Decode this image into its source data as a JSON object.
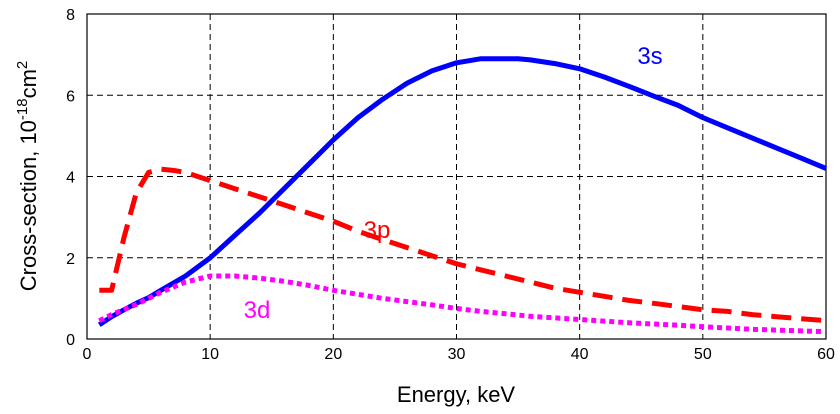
{
  "chart_data": {
    "type": "line",
    "xlabel": "Energy, keV",
    "ylabel": "Cross-section, 10",
    "ylabel_exp": "-18",
    "ylabel_unit": "cm",
    "ylabel_unit_exp": "2",
    "xlim": [
      0,
      60
    ],
    "ylim": [
      0,
      8
    ],
    "xticks": [
      "0",
      "10",
      "20",
      "30",
      "40",
      "50",
      "60"
    ],
    "yticks": [
      "0",
      "2",
      "4",
      "6",
      "8"
    ],
    "grid": true,
    "series": [
      {
        "name": "3s",
        "color": "#0000ff",
        "style": "solid",
        "x": [
          1,
          2,
          3,
          4,
          5,
          6,
          8,
          10,
          12,
          14,
          16,
          18,
          20,
          22,
          24,
          26,
          28,
          30,
          32,
          34,
          35,
          36,
          38,
          40,
          42,
          44,
          46,
          48,
          50,
          52,
          54,
          56,
          58,
          60
        ],
        "y": [
          0.35,
          0.55,
          0.72,
          0.88,
          1.02,
          1.2,
          1.55,
          2.0,
          2.55,
          3.1,
          3.7,
          4.3,
          4.9,
          5.45,
          5.9,
          6.3,
          6.6,
          6.8,
          6.9,
          6.9,
          6.9,
          6.87,
          6.78,
          6.65,
          6.45,
          6.22,
          5.98,
          5.75,
          5.45,
          5.2,
          4.95,
          4.7,
          4.45,
          4.2
        ]
      },
      {
        "name": "3p",
        "color": "#ff0000",
        "style": "dashed",
        "x": [
          1,
          2,
          3,
          4,
          5,
          6,
          7,
          8,
          10,
          12,
          14,
          16,
          18,
          20,
          22,
          24,
          26,
          28,
          30,
          32,
          34,
          36,
          38,
          40,
          42,
          44,
          46,
          48,
          50,
          52,
          54,
          56,
          58,
          60
        ],
        "y": [
          1.2,
          1.2,
          2.5,
          3.6,
          4.1,
          4.18,
          4.15,
          4.1,
          3.9,
          3.7,
          3.5,
          3.3,
          3.1,
          2.9,
          2.65,
          2.45,
          2.25,
          2.05,
          1.85,
          1.7,
          1.55,
          1.4,
          1.25,
          1.15,
          1.05,
          0.95,
          0.88,
          0.8,
          0.72,
          0.68,
          0.6,
          0.55,
          0.5,
          0.45
        ]
      },
      {
        "name": "3d",
        "color": "#ff00ff",
        "style": "dotted",
        "x": [
          1,
          2,
          4,
          6,
          8,
          10,
          12,
          14,
          16,
          18,
          20,
          22,
          24,
          26,
          28,
          30,
          32,
          34,
          36,
          38,
          40,
          42,
          44,
          46,
          48,
          50,
          52,
          54,
          56,
          58,
          60
        ],
        "y": [
          0.45,
          0.6,
          0.85,
          1.15,
          1.4,
          1.55,
          1.55,
          1.5,
          1.42,
          1.32,
          1.2,
          1.1,
          1.0,
          0.92,
          0.84,
          0.75,
          0.68,
          0.62,
          0.56,
          0.52,
          0.48,
          0.44,
          0.4,
          0.37,
          0.34,
          0.3,
          0.27,
          0.24,
          0.22,
          0.2,
          0.18
        ]
      }
    ]
  }
}
